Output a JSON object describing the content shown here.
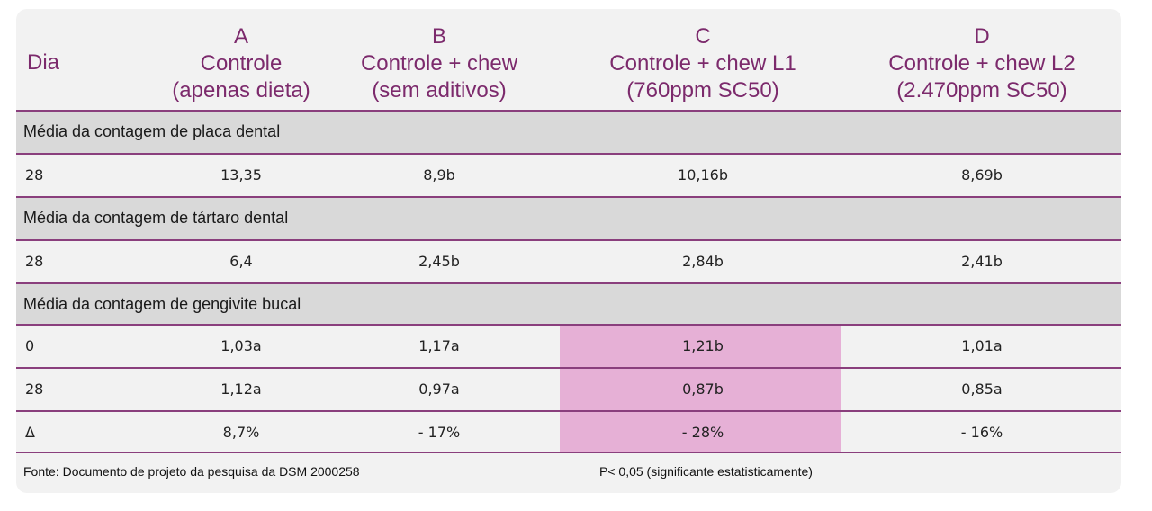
{
  "header": {
    "dia_label": "Dia",
    "columns": [
      {
        "letter": "A",
        "line1": "Controle",
        "line2": "(apenas dieta)"
      },
      {
        "letter": "B",
        "line1": "Controle + chew",
        "line2": "(sem aditivos)"
      },
      {
        "letter": "C",
        "line1": "Controle + chew L1",
        "line2": "(760ppm SC50)"
      },
      {
        "letter": "D",
        "line1": "Controle + chew L2",
        "line2": "(2.470ppm SC50)"
      }
    ]
  },
  "sections": [
    {
      "title": "Média da contagem de placa dental",
      "rows": [
        {
          "dia": "28",
          "values": [
            "13,35",
            "8,9b",
            "10,16b",
            "8,69b"
          ]
        }
      ]
    },
    {
      "title": "Média da contagem de tártaro dental",
      "rows": [
        {
          "dia": "28",
          "values": [
            "6,4",
            "2,45b",
            "2,84b",
            "2,41b"
          ]
        }
      ]
    },
    {
      "title": "Média da contagem de gengivite bucal",
      "rows": [
        {
          "dia": "0",
          "values": [
            "1,03a",
            "1,17a",
            "1,21b",
            "1,01a"
          ]
        },
        {
          "dia": "28",
          "values": [
            "1,12a",
            "0,97a",
            "0,87b",
            "0,85a"
          ]
        },
        {
          "dia": "Δ",
          "values": [
            "8,7%",
            "- 17%",
            "- 28%",
            "- 16%"
          ]
        }
      ]
    }
  ],
  "footer": {
    "source": "Fonte: Documento de projeto da pesquisa da DSM 2000258",
    "note": "P< 0,05 (significante estatisticamente)"
  },
  "colors": {
    "accent": "#7c2a6c",
    "highlight": "#e6b0d6",
    "section_bg": "#d9d9d9"
  }
}
